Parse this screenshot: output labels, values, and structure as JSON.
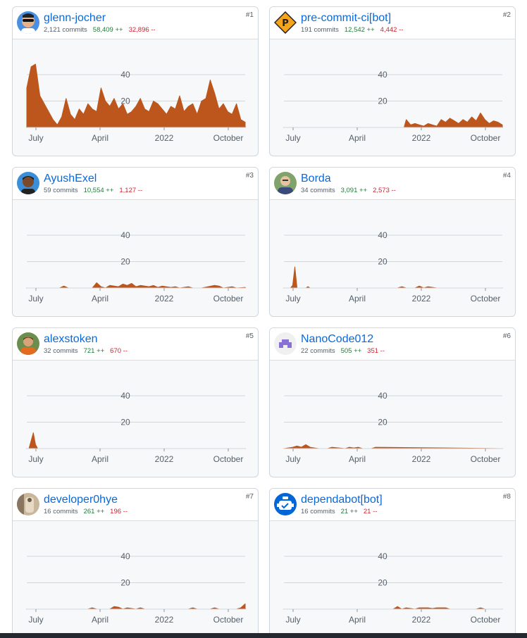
{
  "colors": {
    "area": "#bd561d",
    "link": "#0969da",
    "additions": "#1a7f37",
    "deletions": "#cf222e",
    "grid": "#d0d7de"
  },
  "axis": {
    "y_ticks": [
      "40",
      "20"
    ],
    "x_ticks": [
      "July",
      "April",
      "2022",
      "October"
    ]
  },
  "contributors": [
    {
      "rank": "#1",
      "name": "glenn-jocher",
      "commits": "2,121 commits",
      "additions": "58,409 ++",
      "deletions": "32,896 --",
      "avatar_icon": "person-sunglasses-avatar"
    },
    {
      "rank": "#2",
      "name": "pre-commit-ci[bot]",
      "commits": "191 commits",
      "additions": "12,542 ++",
      "deletions": "4,442 --",
      "avatar_icon": "pre-commit-logo-avatar"
    },
    {
      "rank": "#3",
      "name": "AyushExel",
      "commits": "59 commits",
      "additions": "10,554 ++",
      "deletions": "1,127 --",
      "avatar_icon": "person-avatar"
    },
    {
      "rank": "#4",
      "name": "Borda",
      "commits": "34 commits",
      "additions": "3,091 ++",
      "deletions": "2,573 --",
      "avatar_icon": "person-avatar"
    },
    {
      "rank": "#5",
      "name": "alexstoken",
      "commits": "32 commits",
      "additions": "721 ++",
      "deletions": "670 --",
      "avatar_icon": "person-avatar"
    },
    {
      "rank": "#6",
      "name": "NanoCode012",
      "commits": "22 commits",
      "additions": "505 ++",
      "deletions": "351 --",
      "avatar_icon": "identicon-avatar"
    },
    {
      "rank": "#7",
      "name": "developer0hye",
      "commits": "16 commits",
      "additions": "261 ++",
      "deletions": "196 --",
      "avatar_icon": "photo-avatar"
    },
    {
      "rank": "#8",
      "name": "dependabot[bot]",
      "commits": "16 commits",
      "additions": "21 ++",
      "deletions": "21 --",
      "avatar_icon": "dependabot-logo-avatar"
    }
  ],
  "chart_data": [
    {
      "type": "area",
      "contributor": "glenn-jocher",
      "ylim": [
        0,
        50
      ],
      "x": [
        0,
        0.02,
        0.04,
        0.05,
        0.06,
        0.08,
        0.1,
        0.12,
        0.14,
        0.16,
        0.18,
        0.2,
        0.22,
        0.24,
        0.26,
        0.28,
        0.3,
        0.32,
        0.34,
        0.36,
        0.38,
        0.4,
        0.42,
        0.44,
        0.46,
        0.48,
        0.5,
        0.52,
        0.54,
        0.56,
        0.58,
        0.6,
        0.62,
        0.64,
        0.66,
        0.68,
        0.7,
        0.72,
        0.74,
        0.76,
        0.78,
        0.8,
        0.82,
        0.84,
        0.86,
        0.88,
        0.9,
        0.92,
        0.94,
        0.96,
        0.98,
        1.0
      ],
      "values": [
        30,
        46,
        48,
        36,
        24,
        18,
        12,
        6,
        2,
        8,
        22,
        10,
        6,
        14,
        10,
        18,
        14,
        12,
        30,
        20,
        16,
        22,
        14,
        18,
        10,
        12,
        16,
        22,
        14,
        12,
        20,
        18,
        14,
        10,
        16,
        14,
        24,
        12,
        16,
        18,
        10,
        20,
        22,
        36,
        26,
        14,
        18,
        12,
        10,
        18,
        6,
        4
      ]
    },
    {
      "type": "area",
      "contributor": "pre-commit-ci[bot]",
      "ylim": [
        0,
        50
      ],
      "x": [
        0,
        0.55,
        0.56,
        0.58,
        0.6,
        0.62,
        0.64,
        0.66,
        0.68,
        0.7,
        0.72,
        0.74,
        0.76,
        0.78,
        0.8,
        0.82,
        0.84,
        0.86,
        0.88,
        0.9,
        0.92,
        0.94,
        0.96,
        0.98,
        1.0
      ],
      "values": [
        0,
        0,
        6,
        2,
        3,
        2,
        1,
        3,
        2,
        1,
        6,
        4,
        7,
        5,
        3,
        6,
        4,
        8,
        5,
        11,
        6,
        3,
        5,
        4,
        2
      ]
    },
    {
      "type": "area",
      "contributor": "AyushExel",
      "ylim": [
        0,
        50
      ],
      "x": [
        0,
        0.15,
        0.17,
        0.19,
        0.3,
        0.32,
        0.34,
        0.36,
        0.38,
        0.42,
        0.44,
        0.46,
        0.48,
        0.5,
        0.52,
        0.56,
        0.58,
        0.6,
        0.62,
        0.66,
        0.68,
        0.7,
        0.74,
        0.76,
        0.8,
        0.86,
        0.88,
        0.9,
        0.94,
        0.96,
        1.0
      ],
      "values": [
        0,
        0,
        1.5,
        0,
        0,
        4,
        1,
        0,
        2,
        1,
        3,
        2,
        3.5,
        1,
        2,
        1,
        2,
        0.5,
        1.5,
        0.5,
        1,
        0,
        1,
        0,
        0,
        2,
        1.5,
        0,
        1,
        0,
        0.5
      ]
    },
    {
      "type": "area",
      "contributor": "Borda",
      "ylim": [
        0,
        50
      ],
      "x": [
        0,
        0.03,
        0.04,
        0.05,
        0.06,
        0.1,
        0.11,
        0.12,
        0.5,
        0.52,
        0.54,
        0.56,
        0.6,
        0.62,
        0.64,
        0.66,
        0.7,
        1.0
      ],
      "values": [
        0,
        0,
        2,
        16,
        0,
        0,
        1,
        0,
        0,
        0,
        1,
        0,
        0,
        1.5,
        0,
        1,
        0,
        0
      ]
    },
    {
      "type": "area",
      "contributor": "alexstoken",
      "ylim": [
        0,
        50
      ],
      "x": [
        0,
        0.01,
        0.02,
        0.03,
        0.04,
        0.05,
        1.0
      ],
      "values": [
        0,
        0,
        6,
        12,
        3,
        0,
        0
      ]
    },
    {
      "type": "area",
      "contributor": "NanoCode012",
      "ylim": [
        0,
        50
      ],
      "x": [
        0,
        0.04,
        0.06,
        0.08,
        0.1,
        0.12,
        0.14,
        0.16,
        0.2,
        0.22,
        0.28,
        0.3,
        0.32,
        0.34,
        0.36,
        0.4,
        0.42,
        1.0
      ],
      "values": [
        0,
        1,
        2,
        1,
        3,
        1,
        0.5,
        0,
        0,
        1,
        0,
        1,
        0.5,
        1,
        0,
        0,
        1,
        0
      ]
    },
    {
      "type": "area",
      "contributor": "developer0hye",
      "ylim": [
        0,
        50
      ],
      "x": [
        0,
        0.28,
        0.3,
        0.32,
        0.38,
        0.4,
        0.42,
        0.44,
        0.46,
        0.5,
        0.52,
        0.54,
        0.74,
        0.76,
        0.78,
        0.84,
        0.86,
        0.88,
        0.96,
        0.98,
        1.0
      ],
      "values": [
        0,
        0,
        1,
        0,
        0,
        2,
        1.5,
        0,
        1,
        0,
        1,
        0,
        0,
        1,
        0,
        0,
        1,
        0,
        0,
        1,
        4
      ]
    },
    {
      "type": "area",
      "contributor": "dependabot[bot]",
      "ylim": [
        0,
        50
      ],
      "x": [
        0,
        0.5,
        0.52,
        0.54,
        0.56,
        0.6,
        0.62,
        0.66,
        0.68,
        0.7,
        0.74,
        0.76,
        0.88,
        0.9,
        0.92,
        1.0
      ],
      "values": [
        0,
        0,
        2,
        0,
        1,
        0,
        1,
        1,
        0.5,
        1,
        1,
        0,
        0,
        1,
        0,
        0
      ]
    }
  ]
}
